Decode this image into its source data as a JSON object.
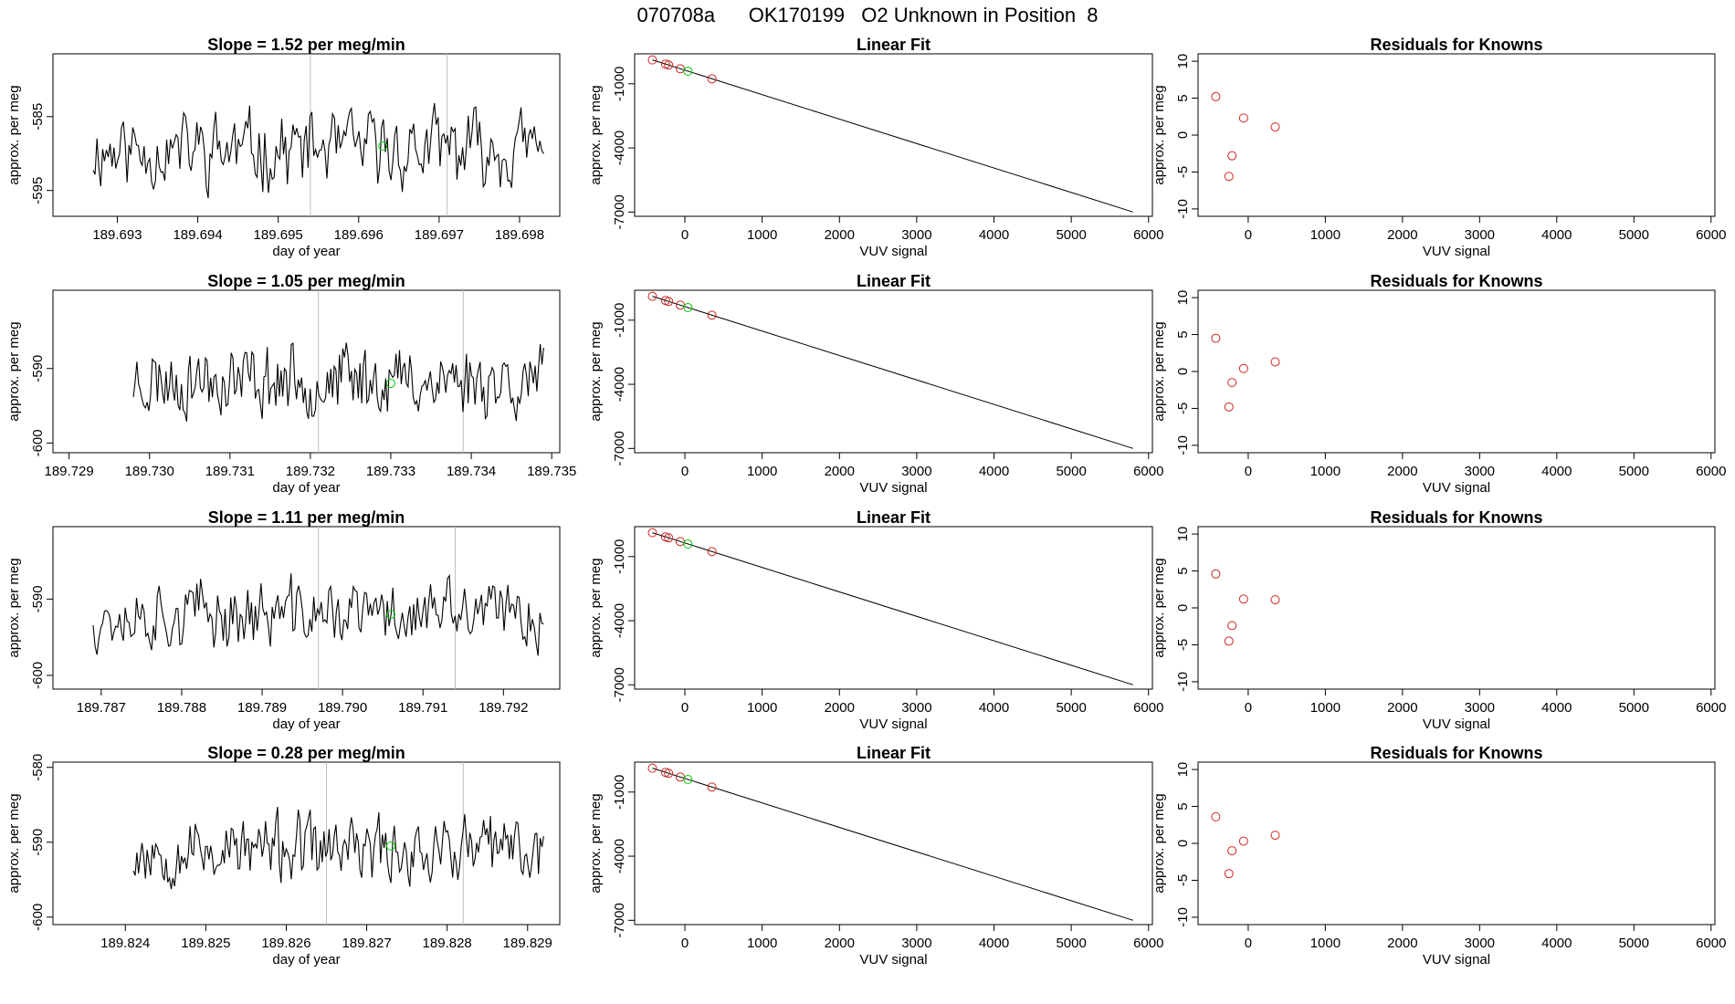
{
  "page": {
    "title": "070708a      OK170199   O2 Unknown in Position  8",
    "colors": {
      "line": "#000000",
      "known": "#cd2626",
      "unknown": "#00cd00",
      "marker": "#bebebe"
    }
  },
  "chart_data": [
    {
      "type": "line",
      "row": 0,
      "col": 0,
      "title": "Slope =  1.52  per meg/min",
      "xlabel": "day of year",
      "ylabel": "approx. per meg",
      "xlim": [
        189.6922,
        189.6985
      ],
      "ylim": [
        -598.5,
        -576.5
      ],
      "xticks": [
        189.693,
        189.694,
        189.695,
        189.696,
        189.697,
        189.698
      ],
      "xtick_labels": [
        "189.693",
        "189.694",
        "189.695",
        "189.696",
        "189.697",
        "189.698"
      ],
      "yticks": [
        -585,
        -595
      ],
      "ytick_labels": [
        "-585",
        "-595"
      ],
      "marker_x": [
        189.6954,
        189.6971
      ],
      "unknown_point": {
        "x": 189.6963,
        "y": -589
      },
      "series_seed": 11,
      "series_mean": -589.5,
      "series_amp": 6.5,
      "series_start": 189.6927,
      "series_end": 189.6983
    },
    {
      "type": "scatter",
      "row": 0,
      "col": 1,
      "title": "Linear Fit",
      "xlabel": "VUV signal",
      "ylabel": "approx. per meg",
      "xlim": [
        -650,
        6050
      ],
      "ylim": [
        -7200,
        400
      ],
      "xticks": [
        0,
        1000,
        2000,
        3000,
        4000,
        5000,
        6000
      ],
      "xtick_labels": [
        "0",
        "1000",
        "2000",
        "3000",
        "4000",
        "5000",
        "6000"
      ],
      "yticks": [
        -1000,
        -4000,
        -7000
      ],
      "ytick_labels": [
        "-1000",
        "-4000",
        "-7000"
      ],
      "fit_line": {
        "x": [
          -420,
          5800
        ],
        "y": [
          116,
          -7000
        ]
      },
      "knowns": {
        "x": [
          -420,
          -250,
          -210,
          -60,
          350
        ],
        "y": [
          116,
          -79,
          -125,
          -297,
          -767
        ]
      },
      "unknown": {
        "x": 40,
        "y": -412
      }
    },
    {
      "type": "scatter",
      "row": 0,
      "col": 2,
      "title": "Residuals for Knowns",
      "xlabel": "VUV signal",
      "ylabel": "approx. per meg",
      "xlim": [
        -650,
        6050
      ],
      "ylim": [
        -11,
        11
      ],
      "xticks": [
        0,
        1000,
        2000,
        3000,
        4000,
        5000,
        6000
      ],
      "xtick_labels": [
        "0",
        "1000",
        "2000",
        "3000",
        "4000",
        "5000",
        "6000"
      ],
      "yticks": [
        10,
        5,
        0,
        -5,
        -10
      ],
      "ytick_labels": [
        "10",
        "5",
        "0",
        "-5",
        "-10"
      ],
      "points": {
        "x": [
          -420,
          -210,
          -250,
          -60,
          350
        ],
        "y": [
          5.2,
          -2.8,
          -5.6,
          2.3,
          1.1
        ]
      }
    },
    {
      "type": "line",
      "row": 1,
      "col": 0,
      "title": "Slope =  1.05  per meg/min",
      "xlabel": "day of year",
      "ylabel": "approx. per meg",
      "xlim": [
        189.7288,
        189.7351
      ],
      "ylim": [
        -601.3,
        -579.5
      ],
      "xticks": [
        189.729,
        189.73,
        189.731,
        189.732,
        189.733,
        189.734,
        189.735
      ],
      "xtick_labels": [
        "189.729",
        "189.730",
        "189.731",
        "189.732",
        "189.733",
        "189.734",
        "189.735"
      ],
      "yticks": [
        -590,
        -600
      ],
      "ytick_labels": [
        "-590",
        "-600"
      ],
      "marker_x": [
        189.7321,
        189.7339
      ],
      "unknown_point": {
        "x": 189.733,
        "y": -592
      },
      "series_seed": 23,
      "series_mean": -591.5,
      "series_amp": 6,
      "series_start": 189.7298,
      "series_end": 189.7349
    },
    {
      "type": "scatter",
      "row": 1,
      "col": 1,
      "title": "Linear Fit",
      "xlabel": "VUV signal",
      "ylabel": "approx. per meg",
      "xlim": [
        -650,
        6050
      ],
      "ylim": [
        -7200,
        400
      ],
      "xticks": [
        0,
        1000,
        2000,
        3000,
        4000,
        5000,
        6000
      ],
      "xtick_labels": [
        "0",
        "1000",
        "2000",
        "3000",
        "4000",
        "5000",
        "6000"
      ],
      "yticks": [
        -1000,
        -4000,
        -7000
      ],
      "ytick_labels": [
        "-1000",
        "-4000",
        "-7000"
      ],
      "fit_line": {
        "x": [
          -420,
          5800
        ],
        "y": [
          116,
          -7000
        ]
      },
      "knowns": {
        "x": [
          -420,
          -250,
          -210,
          -60,
          350
        ],
        "y": [
          116,
          -79,
          -125,
          -297,
          -767
        ]
      },
      "unknown": {
        "x": 40,
        "y": -412
      }
    },
    {
      "type": "scatter",
      "row": 1,
      "col": 2,
      "title": "Residuals for Knowns",
      "xlabel": "VUV signal",
      "ylabel": "approx. per meg",
      "xlim": [
        -650,
        6050
      ],
      "ylim": [
        -11,
        11
      ],
      "xticks": [
        0,
        1000,
        2000,
        3000,
        4000,
        5000,
        6000
      ],
      "xtick_labels": [
        "0",
        "1000",
        "2000",
        "3000",
        "4000",
        "5000",
        "6000"
      ],
      "yticks": [
        10,
        5,
        0,
        -5,
        -10
      ],
      "ytick_labels": [
        "10",
        "5",
        "0",
        "-5",
        "-10"
      ],
      "points": {
        "x": [
          -420,
          -210,
          -250,
          -60,
          350
        ],
        "y": [
          4.5,
          -1.5,
          -4.8,
          0.4,
          1.3
        ]
      }
    },
    {
      "type": "line",
      "row": 2,
      "col": 0,
      "title": "Slope =  1.11  per meg/min",
      "xlabel": "day of year",
      "ylabel": "approx. per meg",
      "xlim": [
        189.7864,
        189.7927
      ],
      "ylim": [
        -601.8,
        -580.5
      ],
      "xticks": [
        189.787,
        189.788,
        189.789,
        189.79,
        189.791,
        189.792
      ],
      "xtick_labels": [
        "189.787",
        "189.788",
        "189.789",
        "189.790",
        "189.791",
        "189.792"
      ],
      "yticks": [
        -590,
        -600
      ],
      "ytick_labels": [
        "-590",
        "-600"
      ],
      "marker_x": [
        189.7897,
        189.7914
      ],
      "unknown_point": {
        "x": 189.7906,
        "y": -592
      },
      "series_seed": 37,
      "series_mean": -592,
      "series_amp": 5.5,
      "series_start": 189.7869,
      "series_end": 189.7925
    },
    {
      "type": "scatter",
      "row": 2,
      "col": 1,
      "title": "Linear Fit",
      "xlabel": "VUV signal",
      "ylabel": "approx. per meg",
      "xlim": [
        -650,
        6050
      ],
      "ylim": [
        -7200,
        400
      ],
      "xticks": [
        0,
        1000,
        2000,
        3000,
        4000,
        5000,
        6000
      ],
      "xtick_labels": [
        "0",
        "1000",
        "2000",
        "3000",
        "4000",
        "5000",
        "6000"
      ],
      "yticks": [
        -1000,
        -4000,
        -7000
      ],
      "ytick_labels": [
        "-1000",
        "-4000",
        "-7000"
      ],
      "fit_line": {
        "x": [
          -420,
          5800
        ],
        "y": [
          116,
          -7000
        ]
      },
      "knowns": {
        "x": [
          -420,
          -250,
          -210,
          -60,
          350
        ],
        "y": [
          116,
          -79,
          -125,
          -297,
          -767
        ]
      },
      "unknown": {
        "x": 40,
        "y": -412
      }
    },
    {
      "type": "scatter",
      "row": 2,
      "col": 2,
      "title": "Residuals for Knowns",
      "xlabel": "VUV signal",
      "ylabel": "approx. per meg",
      "xlim": [
        -650,
        6050
      ],
      "ylim": [
        -11,
        11
      ],
      "xticks": [
        0,
        1000,
        2000,
        3000,
        4000,
        5000,
        6000
      ],
      "xtick_labels": [
        "0",
        "1000",
        "2000",
        "3000",
        "4000",
        "5000",
        "6000"
      ],
      "yticks": [
        10,
        5,
        0,
        -5,
        -10
      ],
      "ytick_labels": [
        "10",
        "5",
        "0",
        "-5",
        "-10"
      ],
      "points": {
        "x": [
          -420,
          -210,
          -250,
          -60,
          350
        ],
        "y": [
          4.6,
          -2.4,
          -4.5,
          1.2,
          1.1
        ]
      }
    },
    {
      "type": "line",
      "row": 3,
      "col": 0,
      "title": "Slope =  0.28  per meg/min",
      "xlabel": "day of year",
      "ylabel": "approx. per meg",
      "xlim": [
        189.8231,
        189.8294
      ],
      "ylim": [
        -601.0,
        -579.3
      ],
      "xticks": [
        189.824,
        189.825,
        189.826,
        189.827,
        189.828,
        189.829
      ],
      "xtick_labels": [
        "189.824",
        "189.825",
        "189.826",
        "189.827",
        "189.828",
        "189.829"
      ],
      "yticks": [
        -580,
        -590,
        -600
      ],
      "ytick_labels": [
        "-580",
        "-590",
        "-600"
      ],
      "marker_x": [
        189.8265,
        189.8282
      ],
      "unknown_point": {
        "x": 189.8273,
        "y": -590.5
      },
      "series_seed": 53,
      "series_mean": -591,
      "series_amp": 5.5,
      "series_start": 189.8241,
      "series_end": 189.8292
    },
    {
      "type": "scatter",
      "row": 3,
      "col": 1,
      "title": "Linear Fit",
      "xlabel": "VUV signal",
      "ylabel": "approx. per meg",
      "xlim": [
        -650,
        6050
      ],
      "ylim": [
        -7200,
        400
      ],
      "xticks": [
        0,
        1000,
        2000,
        3000,
        4000,
        5000,
        6000
      ],
      "xtick_labels": [
        "0",
        "1000",
        "2000",
        "3000",
        "4000",
        "5000",
        "6000"
      ],
      "yticks": [
        -1000,
        -4000,
        -7000
      ],
      "ytick_labels": [
        "-1000",
        "-4000",
        "-7000"
      ],
      "fit_line": {
        "x": [
          -420,
          5800
        ],
        "y": [
          116,
          -7000
        ]
      },
      "knowns": {
        "x": [
          -420,
          -250,
          -210,
          -60,
          350
        ],
        "y": [
          116,
          -79,
          -125,
          -297,
          -767
        ]
      },
      "unknown": {
        "x": 40,
        "y": -412
      }
    },
    {
      "type": "scatter",
      "row": 3,
      "col": 2,
      "title": "Residuals for Knowns",
      "xlabel": "VUV signal",
      "ylabel": "approx. per meg",
      "xlim": [
        -650,
        6050
      ],
      "ylim": [
        -11,
        11
      ],
      "xticks": [
        0,
        1000,
        2000,
        3000,
        4000,
        5000,
        6000
      ],
      "xtick_labels": [
        "0",
        "1000",
        "2000",
        "3000",
        "4000",
        "5000",
        "6000"
      ],
      "yticks": [
        10,
        5,
        0,
        -5,
        -10
      ],
      "ytick_labels": [
        "10",
        "5",
        "0",
        "-5",
        "-10"
      ],
      "points": {
        "x": [
          -420,
          -210,
          -250,
          -60,
          350
        ],
        "y": [
          3.6,
          -1.0,
          -4.1,
          0.3,
          1.1
        ]
      }
    }
  ]
}
